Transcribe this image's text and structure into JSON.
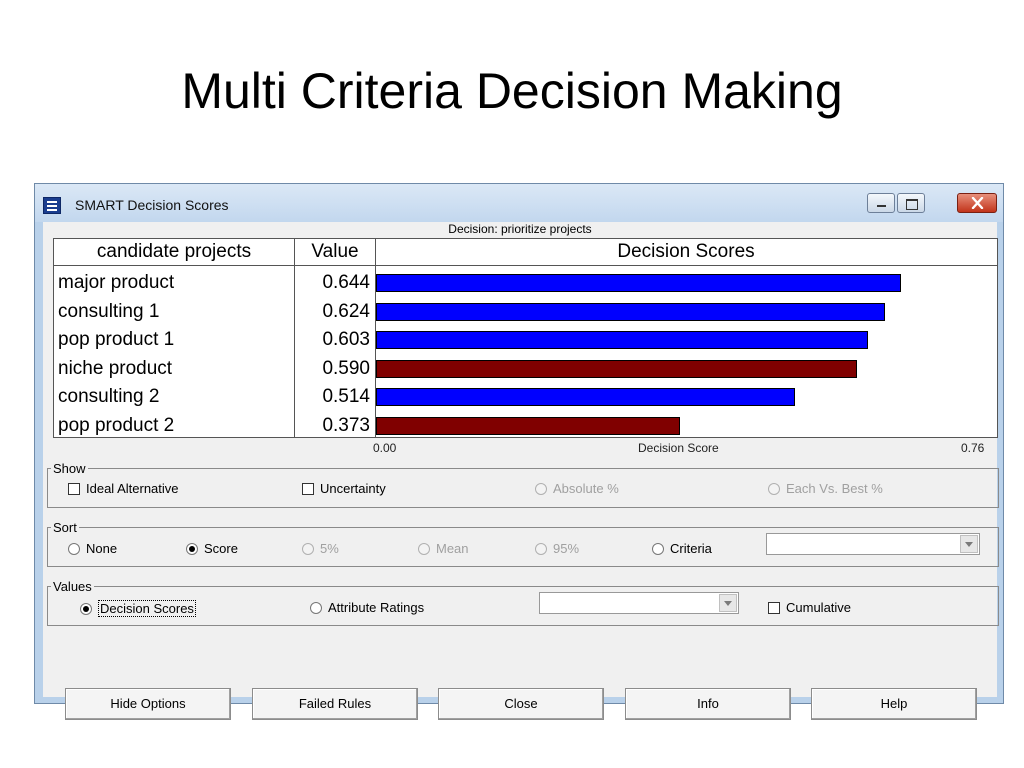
{
  "slide": {
    "title": "Multi Criteria Decision Making"
  },
  "window": {
    "title": "SMART  Decision Scores",
    "controls": {
      "minimize": "minimize-icon",
      "maximize": "maximize-icon",
      "close": "close-icon"
    }
  },
  "chart_caption": "Decision: prioritize projects",
  "table": {
    "col_name": "candidate projects",
    "col_value": "Value",
    "col_chart": "Decision Scores"
  },
  "chart_data": {
    "type": "bar",
    "title": "Decision Scores",
    "xlabel": "Decision Score",
    "xlim": [
      0.0,
      0.76
    ],
    "tick_labels": [
      "0.00",
      "0.76"
    ],
    "categories": [
      "major product",
      "consulting 1",
      "pop product 1",
      "niche product",
      "consulting 2",
      "pop product 2"
    ],
    "values": [
      0.644,
      0.624,
      0.603,
      0.59,
      0.514,
      0.373
    ],
    "value_labels": [
      "0.644",
      "0.624",
      "0.603",
      "0.590",
      "0.514",
      "0.373"
    ],
    "bar_colors": [
      "#0000ff",
      "#0000ff",
      "#0000ff",
      "#800000",
      "#0000ff",
      "#800000"
    ]
  },
  "show": {
    "label": "Show",
    "ideal_alternative": "Ideal Alternative",
    "uncertainty": "Uncertainty",
    "absolute": "Absolute %",
    "each_vs_best": "Each Vs. Best %"
  },
  "sort": {
    "label": "Sort",
    "none": "None",
    "score": "Score",
    "five": "5%",
    "mean": "Mean",
    "ninetyfive": "95%",
    "criteria": "Criteria",
    "selected": "Score"
  },
  "values_group": {
    "label": "Values",
    "decision_scores": "Decision Scores",
    "attribute_ratings": "Attribute Ratings",
    "cumulative": "Cumulative",
    "selected": "Decision Scores"
  },
  "buttons": {
    "hide_options": "Hide Options",
    "failed_rules": "Failed Rules",
    "close": "Close",
    "info": "Info",
    "help": "Help"
  },
  "colors": {
    "blue_bar": "#0000ff",
    "maroon_bar": "#800000",
    "window_frame": "#b9d1ea"
  }
}
